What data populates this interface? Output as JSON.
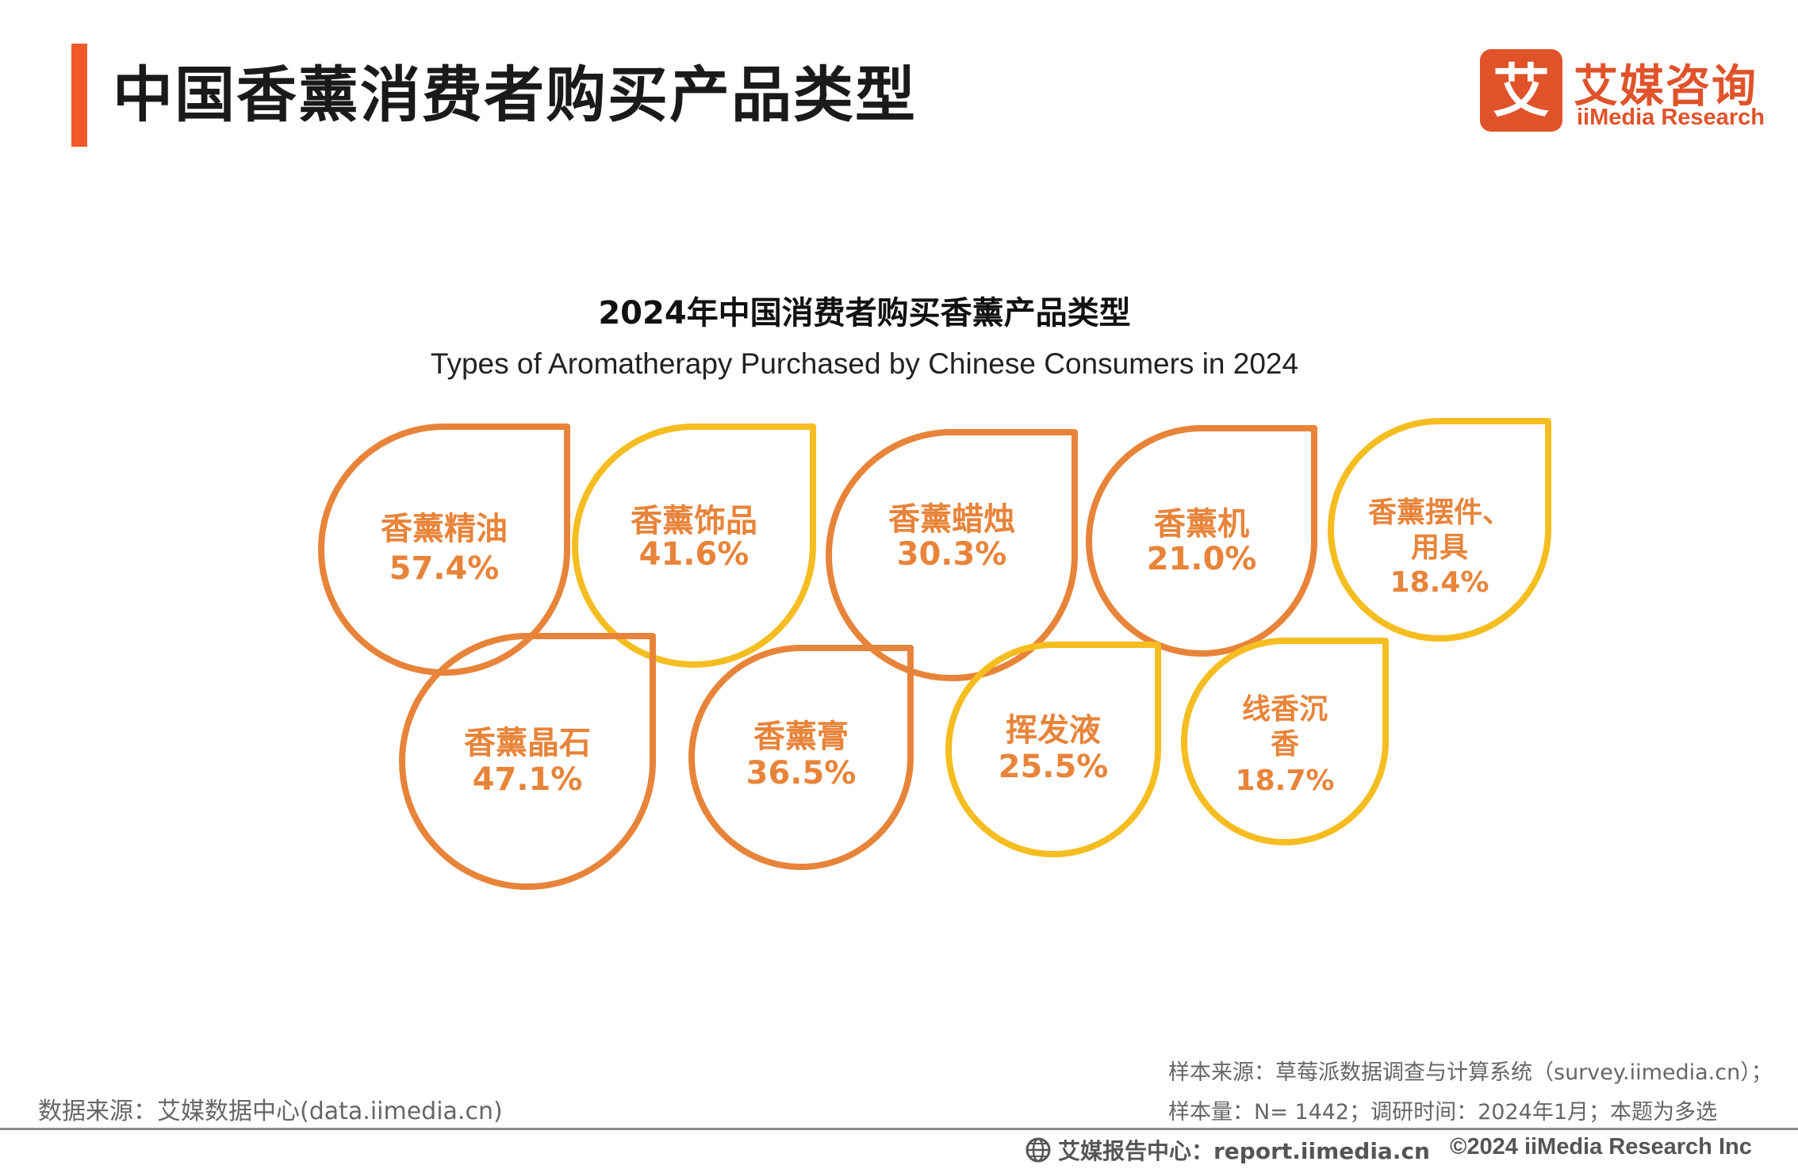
{
  "header": {
    "title": "中国香薰消费者购买产品类型",
    "accent_color": "#f0582a"
  },
  "logo": {
    "cn": "艾媒咨询",
    "en": "iiMedia Research",
    "mark_glyph": "艾",
    "color": "#e0532a"
  },
  "chart_data": {
    "type": "other",
    "title": "2024年中国消费者购买香薰产品类型",
    "subtitle": "Types of Aromatherapy Purchased by Chinese Consumers in 2024",
    "unit": "%",
    "items": [
      {
        "label": "香薰精油",
        "value": 57.4,
        "value_text": "57.4%",
        "color": "#e8843a"
      },
      {
        "label": "香薰饰品",
        "value": 41.6,
        "value_text": "41.6%",
        "color": "#f5bd1f"
      },
      {
        "label": "香薰蜡烛",
        "value": 30.3,
        "value_text": "30.3%",
        "color": "#e8843a"
      },
      {
        "label": "香薰机",
        "value": 21.0,
        "value_text": "21.0%",
        "color": "#e8843a"
      },
      {
        "label": "香薰摆件、用具",
        "value": 18.4,
        "value_text": "18.4%",
        "color": "#f5bd1f"
      },
      {
        "label": "香薰晶石",
        "value": 47.1,
        "value_text": "47.1%",
        "color": "#e8843a"
      },
      {
        "label": "香薰膏",
        "value": 36.5,
        "value_text": "36.5%",
        "color": "#e8843a"
      },
      {
        "label": "挥发液",
        "value": 25.5,
        "value_text": "25.5%",
        "color": "#f5bd1f"
      },
      {
        "label": "线香沉香",
        "value": 18.7,
        "value_text": "18.7%",
        "color": "#f5bd1f"
      }
    ],
    "label_color": "#e8843a"
  },
  "footer": {
    "source": "数据来源：艾媒数据中心(data.iimedia.cn)",
    "sample_source": "样本来源：草莓派数据调查与计算系统（survey.iimedia.cn）；",
    "sample_size": "样本量：N= 1442；调研时间：2024年1月；本题为多选",
    "report": "艾媒报告中心：report.iimedia.cn",
    "copyright": "©2024  iiMedia Research  Inc"
  }
}
